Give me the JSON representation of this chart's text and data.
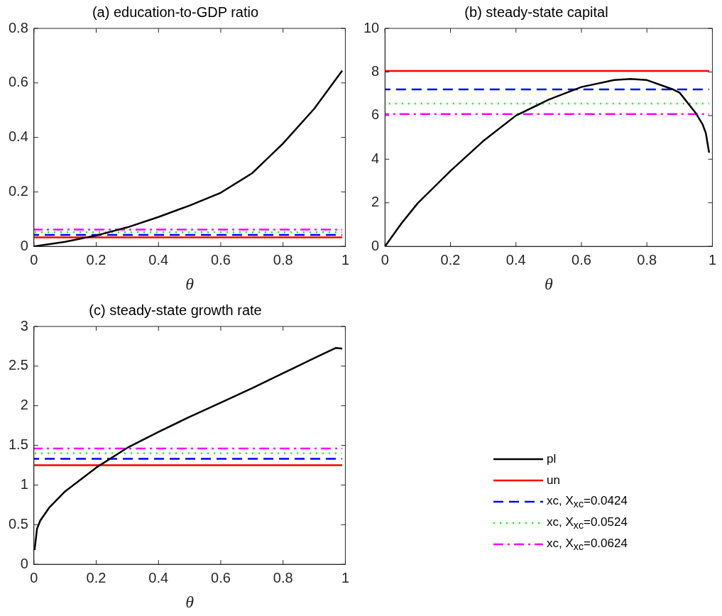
{
  "chart_data": [
    {
      "type": "line",
      "title": "(a) education-to-GDP ratio",
      "xlabel": "θ",
      "xlim": [
        0,
        1
      ],
      "xticks": [
        0,
        0.2,
        0.4,
        0.6,
        0.8,
        1
      ],
      "ylim": [
        0,
        0.8
      ],
      "yticks": [
        0,
        0.2,
        0.4,
        0.6,
        0.8
      ],
      "grid": false,
      "series": [
        {
          "color": "#000000",
          "line_style": "solid",
          "x": [
            0,
            0.1,
            0.2,
            0.3,
            0.4,
            0.5,
            0.6,
            0.7,
            0.8,
            0.9,
            0.99
          ],
          "values": [
            0,
            0.017,
            0.04,
            0.07,
            0.108,
            0.15,
            0.197,
            0.268,
            0.378,
            0.505,
            0.645
          ]
        },
        {
          "color": "#ff0000",
          "line_style": "solid",
          "x": [
            0,
            0.99
          ],
          "values": [
            0.033,
            0.033
          ]
        },
        {
          "color": "#0000ff",
          "line_style": "dashed",
          "x": [
            0,
            0.99
          ],
          "values": [
            0.042,
            0.042
          ]
        },
        {
          "color": "#00ff00",
          "line_style": "dotted",
          "x": [
            0,
            0.99
          ],
          "values": [
            0.052,
            0.052
          ]
        },
        {
          "color": "#ff00ff",
          "line_style": "dashdot",
          "x": [
            0,
            0.99
          ],
          "values": [
            0.062,
            0.062
          ]
        }
      ]
    },
    {
      "type": "line",
      "title": "(b) steady-state capital",
      "xlabel": "θ",
      "xlim": [
        0,
        1
      ],
      "xticks": [
        0,
        0.2,
        0.4,
        0.6,
        0.8,
        1
      ],
      "ylim": [
        0,
        10
      ],
      "yticks": [
        0,
        2,
        4,
        6,
        8,
        10
      ],
      "grid": false,
      "series": [
        {
          "color": "#000000",
          "line_style": "solid",
          "x": [
            0,
            0.05,
            0.1,
            0.2,
            0.3,
            0.4,
            0.5,
            0.6,
            0.7,
            0.75,
            0.8,
            0.88,
            0.9,
            0.95,
            0.97,
            0.98,
            0.99
          ],
          "values": [
            0,
            1.05,
            1.98,
            3.46,
            4.83,
            6.0,
            6.73,
            7.31,
            7.63,
            7.68,
            7.63,
            7.2,
            7.05,
            6.1,
            5.6,
            5.2,
            4.3
          ]
        },
        {
          "color": "#ff0000",
          "line_style": "solid",
          "x": [
            0,
            0.99
          ],
          "values": [
            8.05,
            8.05
          ]
        },
        {
          "color": "#0000ff",
          "line_style": "dashed",
          "x": [
            0,
            0.99
          ],
          "values": [
            7.2,
            7.2
          ]
        },
        {
          "color": "#00ff00",
          "line_style": "dotted",
          "x": [
            0,
            0.99
          ],
          "values": [
            6.55,
            6.55
          ]
        },
        {
          "color": "#ff00ff",
          "line_style": "dashdot",
          "x": [
            0,
            0.99
          ],
          "values": [
            6.07,
            6.07
          ]
        }
      ]
    },
    {
      "type": "line",
      "title": "(c) steady-state growth rate",
      "xlabel": "θ",
      "xlim": [
        0,
        1
      ],
      "xticks": [
        0,
        0.2,
        0.4,
        0.6,
        0.8,
        1
      ],
      "ylim": [
        0,
        3
      ],
      "yticks": [
        0,
        0.5,
        1,
        1.5,
        2,
        2.5,
        3
      ],
      "grid": false,
      "legend": "right",
      "series": [
        {
          "name": "pl",
          "color": "#000000",
          "line_style": "solid",
          "x": [
            0.002,
            0.01,
            0.02,
            0.05,
            0.1,
            0.2,
            0.3,
            0.4,
            0.5,
            0.6,
            0.7,
            0.8,
            0.9,
            0.97,
            0.99
          ],
          "values": [
            0.18,
            0.45,
            0.55,
            0.72,
            0.92,
            1.22,
            1.47,
            1.67,
            1.86,
            2.04,
            2.22,
            2.41,
            2.6,
            2.73,
            2.72
          ]
        },
        {
          "name": "un",
          "color": "#ff0000",
          "line_style": "solid",
          "x": [
            0,
            0.99
          ],
          "values": [
            1.25,
            1.25
          ]
        },
        {
          "name": "xc, X$_{xc}$=0.0424",
          "color": "#0000ff",
          "line_style": "dashed",
          "x": [
            0,
            0.99
          ],
          "values": [
            1.33,
            1.33
          ]
        },
        {
          "name": "xc, X$_{xc}$=0.0524",
          "color": "#00ff00",
          "line_style": "dotted",
          "x": [
            0,
            0.99
          ],
          "values": [
            1.4,
            1.4
          ]
        },
        {
          "name": "xc, X$_{xc}$=0.0624",
          "color": "#ff00ff",
          "line_style": "dashdot",
          "x": [
            0,
            0.99
          ],
          "values": [
            1.46,
            1.46
          ]
        }
      ]
    }
  ]
}
